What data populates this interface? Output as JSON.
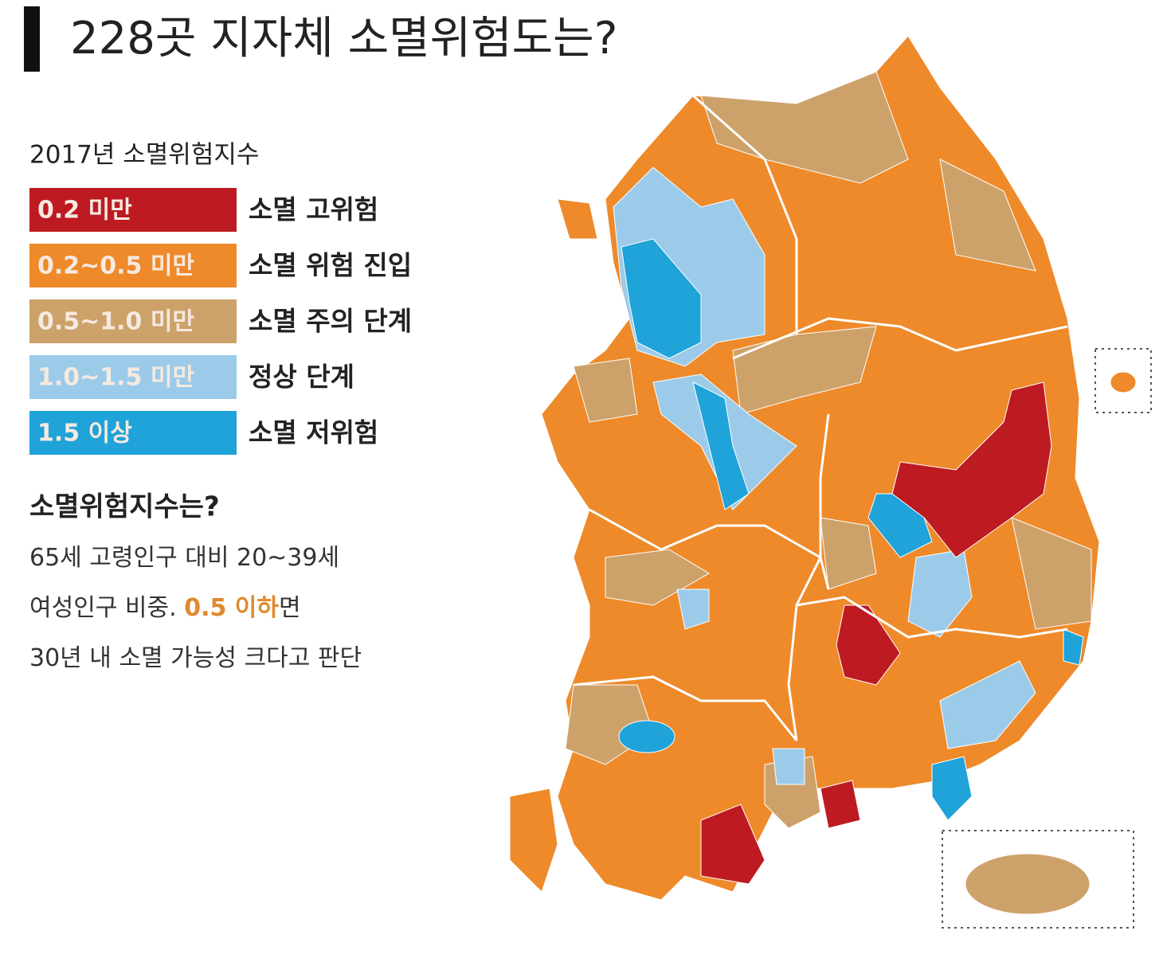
{
  "title": "228곳 지자체 소멸위험도는?",
  "legend": {
    "title": "2017년 소멸위험지수",
    "items": [
      {
        "range": "0.2 미만",
        "label": "소멸 고위험",
        "color": "#be1a22"
      },
      {
        "range": "0.2~0.5 미만",
        "label": "소멸 위험 진입",
        "color": "#ee8a2a"
      },
      {
        "range": "0.5~1.0 미만",
        "label": "소멸 주의 단계",
        "color": "#cda26a"
      },
      {
        "range": "1.0~1.5 미만",
        "label": "정상 단계",
        "color": "#9ccbea"
      },
      {
        "range": "1.5 이상",
        "label": "소멸 저위험",
        "color": "#1fa3d8"
      }
    ]
  },
  "note": {
    "heading": "소멸위험지수는?",
    "lines": [
      [
        "65세 고령인구 대비 20~39세"
      ],
      [
        "여성인구 비중. ",
        "0.5 이하",
        "면"
      ],
      [
        "30년 내 소멸 가능성 크다고 판단"
      ]
    ],
    "highlight_color": "#e0892e"
  }
}
